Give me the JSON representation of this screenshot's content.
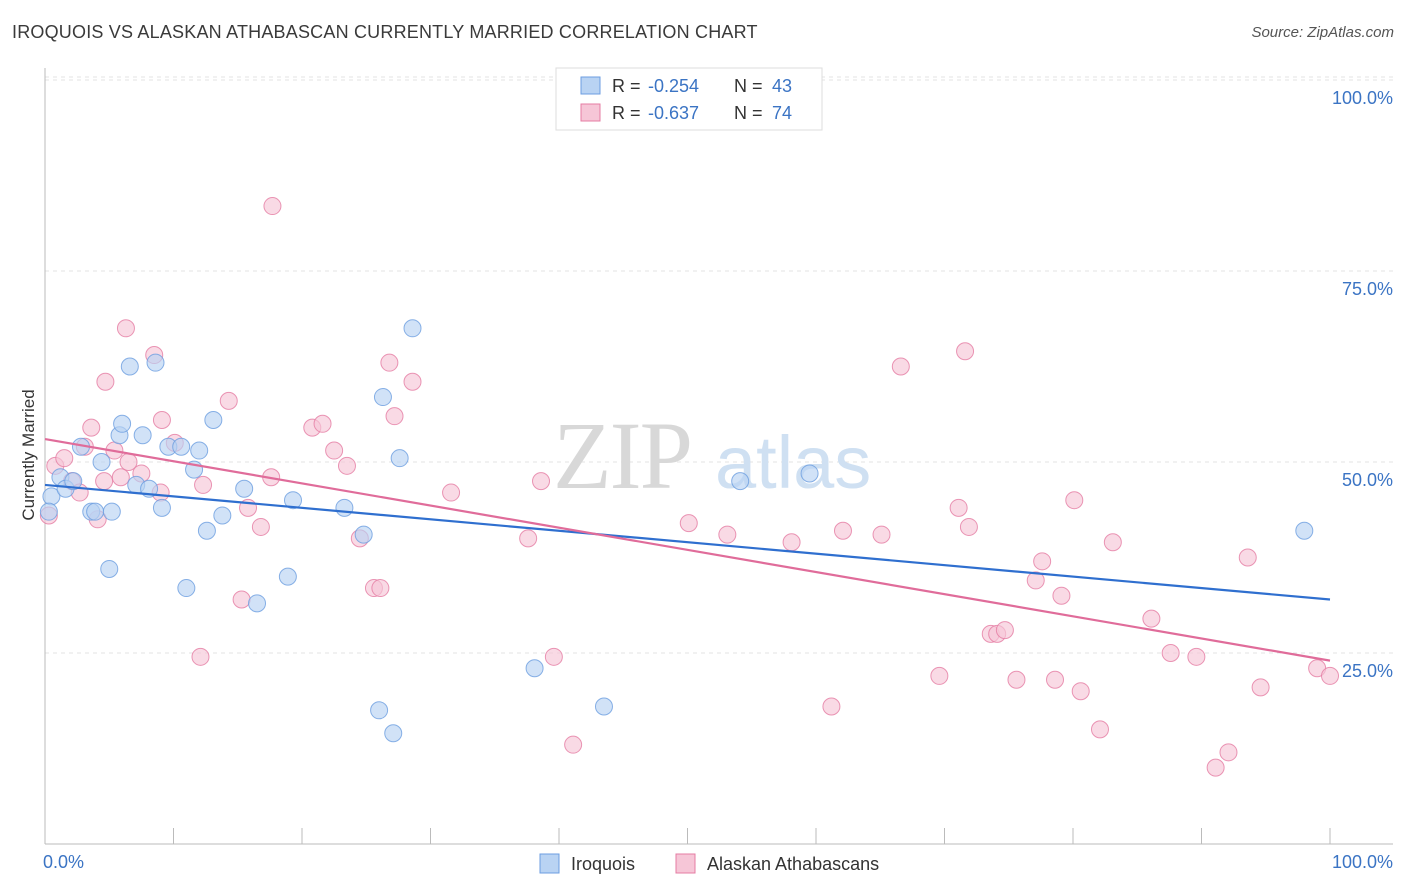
{
  "title": "IROQUOIS VS ALASKAN ATHABASCAN CURRENTLY MARRIED CORRELATION CHART",
  "source": "Source: ZipAtlas.com",
  "watermark": {
    "part1": "ZIP",
    "part2": "atlas"
  },
  "colors": {
    "iroquois": "#6c9ee0",
    "iroquois_fill": "#b9d3f3",
    "alaskan": "#e57ca3",
    "alaskan_fill": "#f6c6d7",
    "blue_line": "#2f6fcf",
    "pink_line": "#e06c9a",
    "tick_text": "#3b74c4"
  },
  "stats": {
    "r_label": "R =",
    "n_label": "N =",
    "iroquois": {
      "r": "-0.254",
      "n": "43"
    },
    "alaskan": {
      "r": "-0.637",
      "n": "74"
    }
  },
  "chart_data": {
    "type": "scatter",
    "xlabel": "",
    "ylabel": "Currently Married",
    "xlim": [
      0,
      100
    ],
    "ylim": [
      0,
      105
    ],
    "x_tick_labels": [
      "0.0%",
      "100.0%"
    ],
    "y_ticks": [
      25,
      50,
      75,
      100
    ],
    "y_tick_labels": [
      "25.0%",
      "50.0%",
      "75.0%",
      "100.0%"
    ],
    "grid": true,
    "legend_position": "bottom-center",
    "series": [
      {
        "name": "Iroquois",
        "r": -0.254,
        "n": 43,
        "trend": [
          [
            0,
            47.0
          ],
          [
            100,
            32.0
          ]
        ],
        "points": [
          [
            0.5,
            45.5
          ],
          [
            1.2,
            48.0
          ],
          [
            1.6,
            46.5
          ],
          [
            2.2,
            47.5
          ],
          [
            2.8,
            52.0
          ],
          [
            3.6,
            43.5
          ],
          [
            3.9,
            43.5
          ],
          [
            4.4,
            50.0
          ],
          [
            5.0,
            36.0
          ],
          [
            5.2,
            43.5
          ],
          [
            5.8,
            53.5
          ],
          [
            6.0,
            55.0
          ],
          [
            6.6,
            62.5
          ],
          [
            7.1,
            47.0
          ],
          [
            7.6,
            53.5
          ],
          [
            8.1,
            46.5
          ],
          [
            8.6,
            63.0
          ],
          [
            9.1,
            44.0
          ],
          [
            9.6,
            52.0
          ],
          [
            10.6,
            52.0
          ],
          [
            11.0,
            33.5
          ],
          [
            11.6,
            49.0
          ],
          [
            12.0,
            51.5
          ],
          [
            12.6,
            41.0
          ],
          [
            13.1,
            55.5
          ],
          [
            13.8,
            43.0
          ],
          [
            15.5,
            46.5
          ],
          [
            16.5,
            31.5
          ],
          [
            18.9,
            35.0
          ],
          [
            19.3,
            45.0
          ],
          [
            23.3,
            44.0
          ],
          [
            24.8,
            40.5
          ],
          [
            26.0,
            17.5
          ],
          [
            26.3,
            58.5
          ],
          [
            27.1,
            14.5
          ],
          [
            27.6,
            50.5
          ],
          [
            28.6,
            67.5
          ],
          [
            38.1,
            23.0
          ],
          [
            43.5,
            18.0
          ],
          [
            54.1,
            47.5
          ],
          [
            59.5,
            48.5
          ],
          [
            98.0,
            41.0
          ],
          [
            0.3,
            43.5
          ]
        ]
      },
      {
        "name": "Alaskan Athabascans",
        "r": -0.637,
        "n": 74,
        "trend": [
          [
            0,
            53.0
          ],
          [
            100,
            24.0
          ]
        ],
        "points": [
          [
            0.3,
            43.0
          ],
          [
            0.8,
            49.5
          ],
          [
            1.5,
            50.5
          ],
          [
            2.1,
            47.5
          ],
          [
            2.7,
            46.0
          ],
          [
            3.1,
            52.0
          ],
          [
            3.6,
            54.5
          ],
          [
            4.1,
            42.5
          ],
          [
            4.6,
            47.5
          ],
          [
            4.7,
            60.5
          ],
          [
            5.4,
            51.5
          ],
          [
            5.9,
            48.0
          ],
          [
            6.3,
            67.5
          ],
          [
            6.5,
            50.0
          ],
          [
            7.5,
            48.5
          ],
          [
            8.5,
            64.0
          ],
          [
            9.0,
            46.0
          ],
          [
            9.1,
            55.5
          ],
          [
            10.1,
            52.5
          ],
          [
            12.1,
            24.5
          ],
          [
            12.3,
            47.0
          ],
          [
            14.3,
            58.0
          ],
          [
            15.3,
            32.0
          ],
          [
            15.8,
            44.0
          ],
          [
            16.8,
            41.5
          ],
          [
            17.6,
            48.0
          ],
          [
            17.7,
            83.5
          ],
          [
            20.8,
            54.5
          ],
          [
            21.6,
            55.0
          ],
          [
            22.5,
            51.5
          ],
          [
            23.5,
            49.5
          ],
          [
            24.5,
            40.0
          ],
          [
            25.6,
            33.5
          ],
          [
            26.1,
            33.5
          ],
          [
            26.8,
            63.0
          ],
          [
            27.2,
            56.0
          ],
          [
            28.6,
            60.5
          ],
          [
            31.6,
            46.0
          ],
          [
            37.6,
            40.0
          ],
          [
            38.6,
            47.5
          ],
          [
            39.6,
            24.5
          ],
          [
            41.1,
            13.0
          ],
          [
            50.1,
            42.0
          ],
          [
            53.1,
            40.5
          ],
          [
            58.1,
            39.5
          ],
          [
            61.2,
            18.0
          ],
          [
            62.1,
            41.0
          ],
          [
            65.1,
            40.5
          ],
          [
            66.6,
            62.5
          ],
          [
            69.6,
            22.0
          ],
          [
            71.1,
            44.0
          ],
          [
            71.6,
            64.5
          ],
          [
            71.9,
            41.5
          ],
          [
            73.6,
            27.5
          ],
          [
            74.1,
            27.5
          ],
          [
            74.7,
            28.0
          ],
          [
            75.6,
            21.5
          ],
          [
            77.1,
            34.5
          ],
          [
            77.6,
            37.0
          ],
          [
            78.6,
            21.5
          ],
          [
            79.1,
            32.5
          ],
          [
            80.1,
            45.0
          ],
          [
            80.6,
            20.0
          ],
          [
            82.1,
            15.0
          ],
          [
            83.1,
            39.5
          ],
          [
            86.1,
            29.5
          ],
          [
            87.6,
            25.0
          ],
          [
            89.6,
            24.5
          ],
          [
            91.1,
            10.0
          ],
          [
            92.1,
            12.0
          ],
          [
            93.6,
            37.5
          ],
          [
            94.6,
            20.5
          ],
          [
            99.0,
            23.0
          ],
          [
            100.0,
            22.0
          ]
        ]
      }
    ]
  }
}
